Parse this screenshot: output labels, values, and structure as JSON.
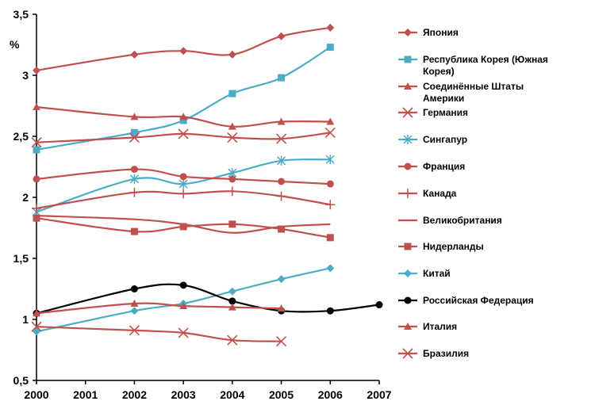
{
  "chart_data": {
    "type": "line",
    "ylabel": "%",
    "xlim": [
      2000,
      2007
    ],
    "ylim": [
      0.5,
      3.5
    ],
    "x_ticks": [
      "2000",
      "2001",
      "2002",
      "2003",
      "2004",
      "2005",
      "2006",
      "2007"
    ],
    "y_ticks": [
      "0,5",
      "1",
      "1,5",
      "2",
      "2,5",
      "3",
      "3,5"
    ],
    "grid": false,
    "legend_position": "right",
    "series": [
      {
        "name": "Япония",
        "color": "#c0504d",
        "marker": "diamond",
        "points": [
          [
            2000,
            3.04
          ],
          [
            2002,
            3.17
          ],
          [
            2003,
            3.2
          ],
          [
            2004,
            3.17
          ],
          [
            2005,
            3.32
          ],
          [
            2006,
            3.39
          ]
        ]
      },
      {
        "name": "Республика Корея (Южная Корея)",
        "color": "#4bacc6",
        "marker": "square",
        "points": [
          [
            2000,
            2.39
          ],
          [
            2002,
            2.53
          ],
          [
            2003,
            2.63
          ],
          [
            2004,
            2.85
          ],
          [
            2005,
            2.98
          ],
          [
            2006,
            3.23
          ]
        ]
      },
      {
        "name": "Соединённые Штаты Америки",
        "color": "#c0504d",
        "marker": "triangle",
        "points": [
          [
            2000,
            2.74
          ],
          [
            2002,
            2.66
          ],
          [
            2003,
            2.66
          ],
          [
            2004,
            2.58
          ],
          [
            2005,
            2.62
          ],
          [
            2006,
            2.62
          ]
        ]
      },
      {
        "name": "Германия",
        "color": "#c0504d",
        "marker": "x",
        "points": [
          [
            2000,
            2.45
          ],
          [
            2002,
            2.49
          ],
          [
            2003,
            2.52
          ],
          [
            2004,
            2.49
          ],
          [
            2005,
            2.48
          ],
          [
            2006,
            2.53
          ]
        ]
      },
      {
        "name": "Сингапур",
        "color": "#4bacc6",
        "marker": "star",
        "points": [
          [
            2000,
            1.88
          ],
          [
            2002,
            2.15
          ],
          [
            2003,
            2.11
          ],
          [
            2004,
            2.2
          ],
          [
            2005,
            2.3
          ],
          [
            2006,
            2.31
          ]
        ]
      },
      {
        "name": "Франция",
        "color": "#c0504d",
        "marker": "circle",
        "points": [
          [
            2000,
            2.15
          ],
          [
            2002,
            2.23
          ],
          [
            2003,
            2.17
          ],
          [
            2004,
            2.15
          ],
          [
            2005,
            2.13
          ],
          [
            2006,
            2.11
          ]
        ]
      },
      {
        "name": "Канада",
        "color": "#c0504d",
        "marker": "plus",
        "points": [
          [
            2000,
            1.91
          ],
          [
            2002,
            2.04
          ],
          [
            2003,
            2.03
          ],
          [
            2004,
            2.05
          ],
          [
            2005,
            2.01
          ],
          [
            2006,
            1.94
          ]
        ]
      },
      {
        "name": "Великобритания",
        "color": "#c0504d",
        "marker": "none",
        "points": [
          [
            2000,
            1.85
          ],
          [
            2002,
            1.82
          ],
          [
            2003,
            1.78
          ],
          [
            2004,
            1.71
          ],
          [
            2005,
            1.76
          ],
          [
            2006,
            1.78
          ]
        ]
      },
      {
        "name": "Нидерланды",
        "color": "#c0504d",
        "marker": "square",
        "points": [
          [
            2000,
            1.83
          ],
          [
            2002,
            1.72
          ],
          [
            2003,
            1.76
          ],
          [
            2004,
            1.78
          ],
          [
            2005,
            1.74
          ],
          [
            2006,
            1.67
          ]
        ]
      },
      {
        "name": "Китай",
        "color": "#4bacc6",
        "marker": "diamond",
        "points": [
          [
            2000,
            0.9
          ],
          [
            2002,
            1.07
          ],
          [
            2003,
            1.13
          ],
          [
            2004,
            1.23
          ],
          [
            2005,
            1.33
          ],
          [
            2006,
            1.42
          ]
        ]
      },
      {
        "name": "Российская Федерация",
        "color": "#000000",
        "marker": "circle",
        "points": [
          [
            2000,
            1.05
          ],
          [
            2002,
            1.25
          ],
          [
            2003,
            1.28
          ],
          [
            2004,
            1.15
          ],
          [
            2005,
            1.07
          ],
          [
            2006,
            1.07
          ],
          [
            2007,
            1.12
          ]
        ]
      },
      {
        "name": "Италия",
        "color": "#c0504d",
        "marker": "triangle",
        "points": [
          [
            2000,
            1.05
          ],
          [
            2002,
            1.13
          ],
          [
            2003,
            1.11
          ],
          [
            2004,
            1.1
          ],
          [
            2005,
            1.09
          ]
        ]
      },
      {
        "name": "Бразилия",
        "color": "#c0504d",
        "marker": "x",
        "points": [
          [
            2000,
            0.94
          ],
          [
            2002,
            0.91
          ],
          [
            2003,
            0.89
          ],
          [
            2004,
            0.83
          ],
          [
            2005,
            0.82
          ]
        ]
      }
    ]
  }
}
